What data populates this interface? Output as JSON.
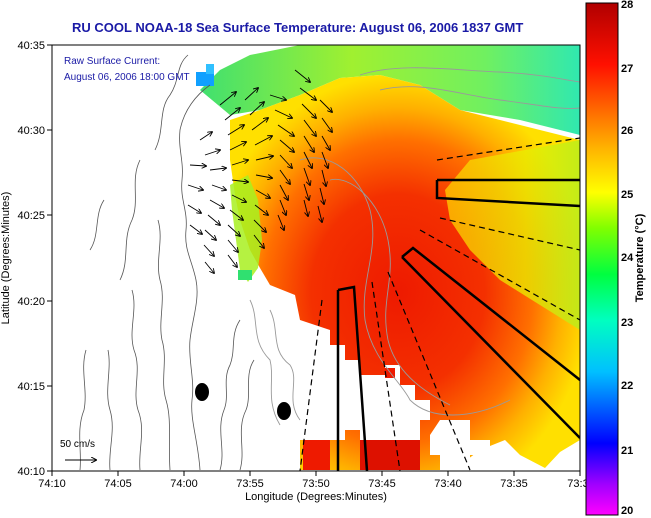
{
  "title": "RU COOL  NOAA-18  Sea Surface Temperature:  August 06, 2006 1837 GMT",
  "current_note": {
    "line1": "Raw Surface Current:",
    "line2": "August 06, 2006 18:00 GMT"
  },
  "x_axis": {
    "label": "Longitude (Degrees:Minutes)",
    "ticks": [
      "74:10",
      "74:05",
      "74:00",
      "73:55",
      "73:50",
      "73:45",
      "73:40",
      "73:35",
      "73:3"
    ]
  },
  "y_axis": {
    "label": "Latitude (Degrees:Minutes)",
    "ticks": [
      "40:35",
      "40:30",
      "40:25",
      "40:20",
      "40:15",
      "40:10"
    ]
  },
  "scale_bar": {
    "label": "50 cm/s"
  },
  "colorbar": {
    "label": "Temperature (°C)",
    "ticks": [
      "28",
      "27",
      "26",
      "25",
      "24",
      "23",
      "22",
      "21",
      "20"
    ],
    "range": [
      20,
      28
    ],
    "colors": [
      "#ff00ff",
      "#0000ff",
      "#00ffff",
      "#00ff00",
      "#ffff00",
      "#ff8000",
      "#ff0000",
      "#b00000"
    ]
  },
  "colors": {
    "title": "#1a1aa6",
    "land": "#ffffff",
    "coast": "#555555",
    "bathymetry": "#9a9a9a"
  }
}
